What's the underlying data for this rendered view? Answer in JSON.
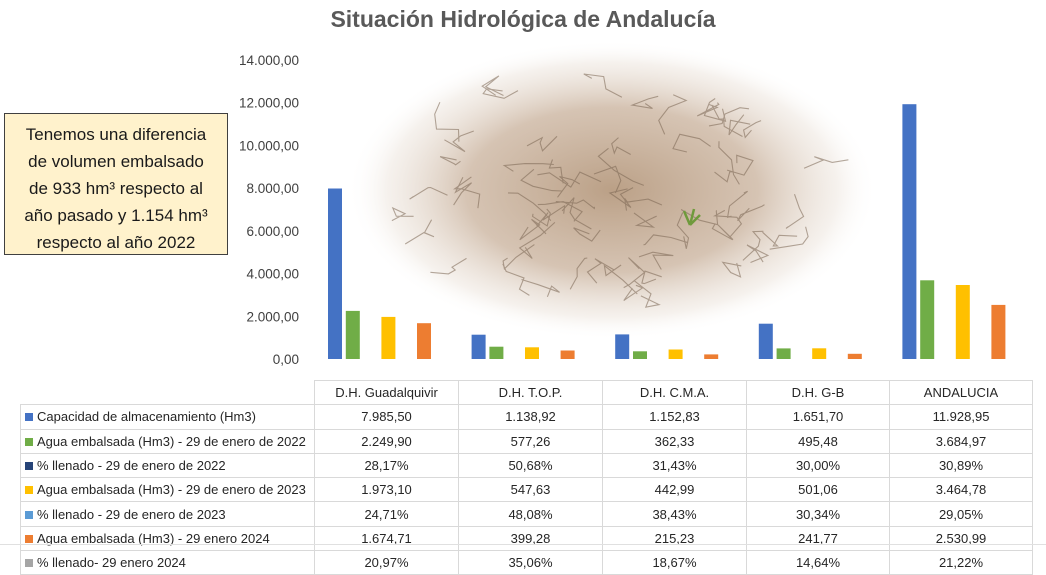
{
  "title": "Situación Hidrológica de Andalucía",
  "note": [
    "Tenemos una diferencia",
    "de volumen embalsado",
    "de 933 hm³ respecto al",
    "año pasado y 1.154 hm³",
    "respecto al año 2022"
  ],
  "chart_data": {
    "type": "bar",
    "title": "Situación Hidrológica de Andalucía",
    "ylim": [
      0,
      14000
    ],
    "yticks": [
      "0,00",
      "2.000,00",
      "4.000,00",
      "6.000,00",
      "8.000,00",
      "10.000,00",
      "12.000,00",
      "14.000,00"
    ],
    "grid": false,
    "legend": "data table",
    "categories": [
      "D.H. Guadalquivir",
      "D.H. T.O.P.",
      "D.H. C.M.A.",
      "D.H. G-B",
      "ANDALUCIA"
    ],
    "series": [
      {
        "name": "Capacidad de almacenamiento (Hm3)",
        "color": "#4472c4",
        "bar": true,
        "values": [
          7985.5,
          1138.92,
          1152.83,
          1651.7,
          11928.95
        ],
        "labels": [
          "7.985,50",
          "1.138,92",
          "1.152,83",
          "1.651,70",
          "11.928,95"
        ]
      },
      {
        "name": "Agua embalsada (Hm3) - 29 de enero de 2022",
        "color": "#70ad47",
        "bar": true,
        "values": [
          2249.9,
          577.26,
          362.33,
          495.48,
          3684.97
        ],
        "labels": [
          "2.249,90",
          "577,26",
          "362,33",
          "495,48",
          "3.684,97"
        ]
      },
      {
        "name": "% llenado - 29 de enero de 2022",
        "color": "#264478",
        "bar": false,
        "values": [
          28.17,
          50.68,
          31.43,
          30.0,
          30.89
        ],
        "labels": [
          "28,17%",
          "50,68%",
          "31,43%",
          "30,00%",
          "30,89%"
        ]
      },
      {
        "name": "Agua embalsada (Hm3) - 29 de enero de 2023",
        "color": "#ffc000",
        "bar": true,
        "values": [
          1973.1,
          547.63,
          442.99,
          501.06,
          3464.78
        ],
        "labels": [
          "1.973,10",
          "547,63",
          "442,99",
          "501,06",
          "3.464,78"
        ]
      },
      {
        "name": "% llenado - 29 de enero de 2023",
        "color": "#5b9bd5",
        "bar": false,
        "values": [
          24.71,
          48.08,
          38.43,
          30.34,
          29.05
        ],
        "labels": [
          "24,71%",
          "48,08%",
          "38,43%",
          "30,34%",
          "29,05%"
        ]
      },
      {
        "name": "Agua embalsada (Hm3) - 29 enero 2024",
        "color": "#ed7d31",
        "bar": true,
        "values": [
          1674.71,
          399.28,
          215.23,
          241.77,
          2530.99
        ],
        "labels": [
          "1.674,71",
          "399,28",
          "215,23",
          "241,77",
          "2.530,99"
        ]
      },
      {
        "name": "% llenado- 29 enero 2024",
        "color": "#a5a5a5",
        "bar": false,
        "values": [
          20.97,
          35.06,
          18.67,
          14.64,
          21.22
        ],
        "labels": [
          "20,97%",
          "35,06%",
          "18,67%",
          "14,64%",
          "21,22%"
        ]
      }
    ]
  }
}
